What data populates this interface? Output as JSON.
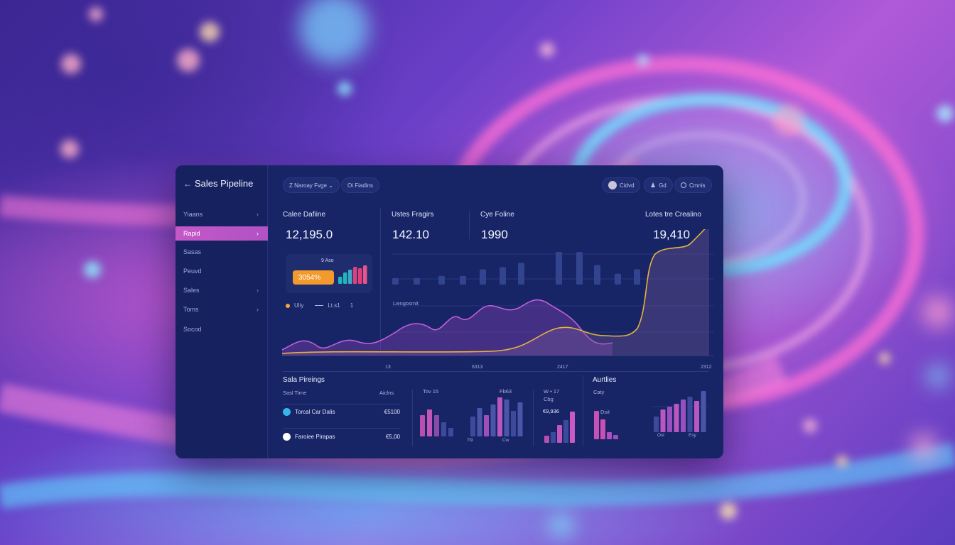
{
  "app": {
    "title": "Sales Pipeline",
    "back_icon": "arrow-left-icon"
  },
  "sidebar": {
    "items": [
      {
        "label": "Yiaans",
        "chevron": true,
        "active": false
      },
      {
        "label": "Rapid",
        "chevron": true,
        "active": true
      },
      {
        "label": "Sasas",
        "chevron": false,
        "active": false
      },
      {
        "label": "Peuvd",
        "chevron": false,
        "active": false
      },
      {
        "label": "Sales",
        "chevron": true,
        "active": false
      },
      {
        "label": "Toms",
        "chevron": true,
        "active": false
      },
      {
        "label": "Socod",
        "chevron": false,
        "active": false
      }
    ]
  },
  "toolbar": {
    "filter_1": "Z  Naroay Fvge ⌄",
    "filter_2": "Oi Fiadins",
    "user_label": "Cidvd",
    "action_2": "Gd",
    "action_3": "Cmnis"
  },
  "kpis": [
    {
      "label": "Calee Dafiine",
      "value": "12,195.0"
    },
    {
      "label": "Ustes Fragirs",
      "value": "142.10"
    },
    {
      "label": "Cye Foline",
      "value": "1990"
    },
    {
      "label": "Lotes tre Crealino",
      "value": "19,410"
    }
  ],
  "mini_card": {
    "label": "9 Aso",
    "badge": "3054%",
    "bars": [
      10,
      16,
      20,
      24,
      22,
      26
    ]
  },
  "legend": {
    "item_1": "Uliy",
    "item_2": "Lt.s1",
    "item_3": "1"
  },
  "chart": {
    "inner_label": "Lwngosmit",
    "x_ticks": [
      "13",
      "6313",
      "2417",
      "2312"
    ],
    "bar_values": [
      3,
      3,
      4,
      4,
      7,
      8,
      10,
      15,
      15,
      9,
      5,
      7
    ],
    "series_colors": {
      "purple": "#c35fd8",
      "gold": "#e6b23e",
      "bars": "#33448f"
    }
  },
  "pipelines": {
    "title": "Sala Pireings",
    "col_1": "Sasl Tirne",
    "col_2": "Aiclns",
    "rows": [
      {
        "label": "Torcal Car Dalis",
        "value": "€5100",
        "icon_color": "#36b6e8"
      },
      {
        "label": "Faroiee Pirapas",
        "value": "€5,00",
        "icon_color": "#ffffff"
      }
    ]
  },
  "mini_charts": {
    "m2_label_1": "Tov 15",
    "m2_label_2": "Fb63",
    "m2_tick_1": "Ti9",
    "m2_tick_2": "Cw",
    "m3_label_1": "W • 17",
    "m3_label_2": "Cbg",
    "m3_value": "€9,936",
    "bars_left": [
      30,
      38,
      30,
      20,
      12
    ],
    "bars_right": [
      28,
      40,
      30,
      45,
      55,
      52,
      36,
      48
    ],
    "bars_m3": [
      10,
      15,
      25,
      32,
      44
    ]
  },
  "arbitrs": {
    "title": "Aurtlies",
    "sub": "Caty",
    "label_1": "Dsit",
    "tick_1": "Osl",
    "tick_2": "Esy",
    "bars_left": [
      40,
      28,
      10,
      6
    ],
    "bars_right": [
      22,
      32,
      36,
      40,
      46,
      50,
      44,
      58
    ]
  }
}
